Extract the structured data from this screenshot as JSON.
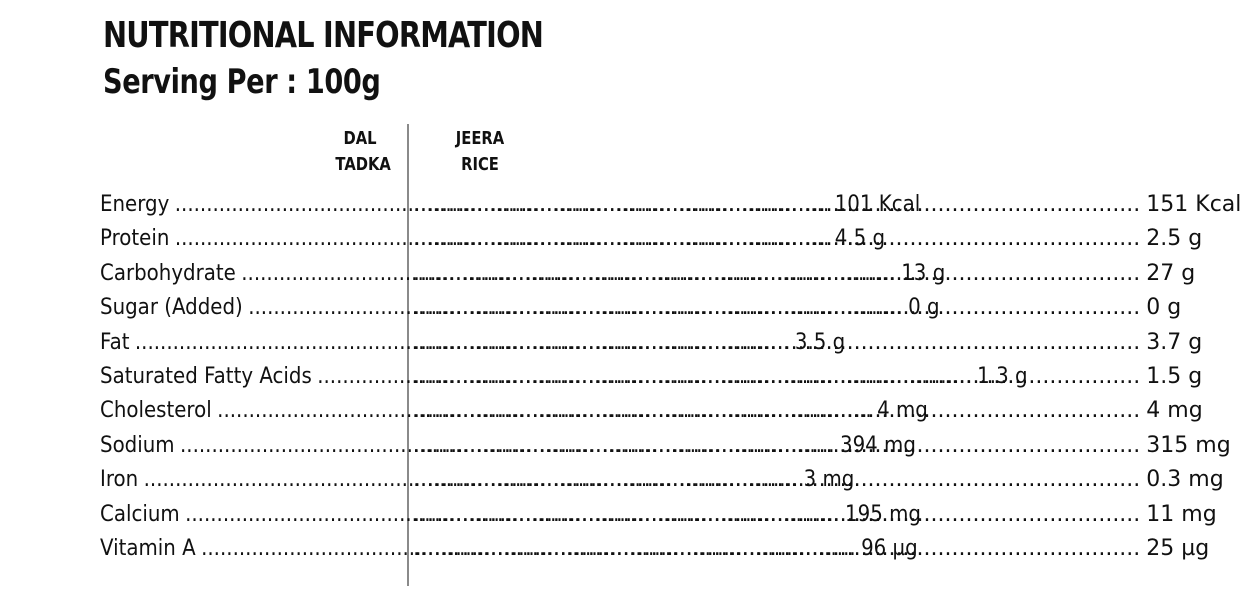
{
  "header": {
    "title": "NUTRITIONAL INFORMATION",
    "subtitle": "Serving Per : 100g"
  },
  "columns": [
    {
      "line1": "DAL",
      "line2": "TADKA"
    },
    {
      "line1": "JEERA",
      "line2": "RICE"
    }
  ],
  "rows": [
    {
      "label": "Energy",
      "dal": "101 Kcal",
      "rice": "151 Kcal"
    },
    {
      "label": "Protein",
      "dal": "4.5 g",
      "rice": "2.5 g"
    },
    {
      "label": "Carbohydrate",
      "dal": "13 g",
      "rice": "27 g"
    },
    {
      "label": "Sugar (Added)",
      "dal": "0 g",
      "rice": "0 g"
    },
    {
      "label": "Fat",
      "dal": "3.5 g",
      "rice": "3.7 g"
    },
    {
      "label": "Saturated Fatty Acids",
      "dal": "1.3 g",
      "rice": "1.5 g"
    },
    {
      "label": "Cholesterol",
      "dal": "4 mg",
      "rice": "4 mg"
    },
    {
      "label": "Sodium",
      "dal": "394 mg",
      "rice": "315 mg"
    },
    {
      "label": "Iron",
      "dal": "3 mg",
      "rice": "0.3 mg"
    },
    {
      "label": "Calcium",
      "dal": "195 mg",
      "rice": "11 mg"
    },
    {
      "label": "Vitamin A",
      "dal": "96 µg",
      "rice": "25 µg"
    }
  ]
}
